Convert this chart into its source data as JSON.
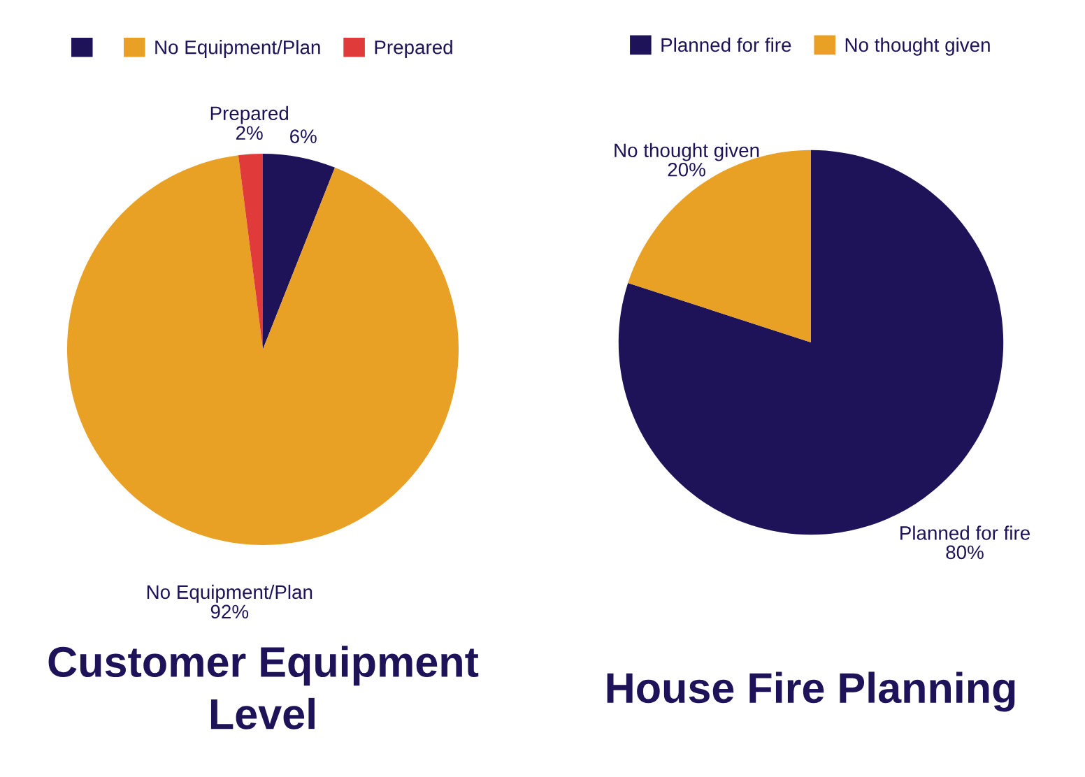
{
  "chart_data": [
    {
      "type": "pie",
      "title": "Customer Equipment Level",
      "categories": [
        null,
        "No Equipment/Plan",
        "Prepared"
      ],
      "values": [
        6,
        92,
        2
      ],
      "value_labels": [
        "6%",
        "92%",
        "2%"
      ],
      "colors": [
        "#1e1259",
        "#e8a025",
        "#e03a3a"
      ],
      "legend": "top"
    },
    {
      "type": "pie",
      "title": "House Fire Planning",
      "categories": [
        "Planned for fire",
        "No thought given"
      ],
      "values": [
        80,
        20
      ],
      "value_labels": [
        "80%",
        "20%"
      ],
      "colors": [
        "#1e1259",
        "#e8a025"
      ],
      "legend": "top"
    }
  ]
}
